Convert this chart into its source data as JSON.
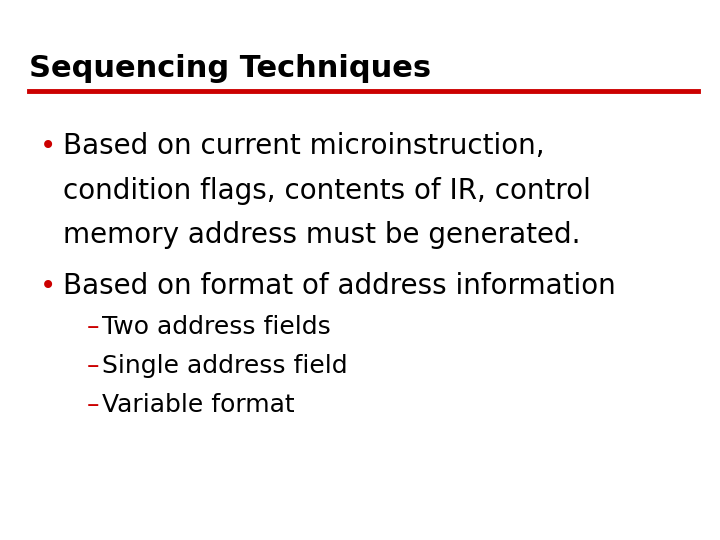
{
  "title": "Sequencing Techniques",
  "title_color": "#000000",
  "title_fontsize": 22,
  "underline_color": "#cc0000",
  "background_color": "#ffffff",
  "bullet_color": "#cc0000",
  "bullet1_lines": [
    "Based on current microinstruction,",
    "condition flags, contents of IR, control",
    "memory address must be generated."
  ],
  "bullet2_line": "Based on format of address information",
  "sub_bullets": [
    "–Two address fields",
    "–Single address field",
    "–Variable format"
  ],
  "bullet_fontsize": 20,
  "sub_bullet_fontsize": 18,
  "text_color": "#000000",
  "sub_bullet_color": "#cc0000"
}
